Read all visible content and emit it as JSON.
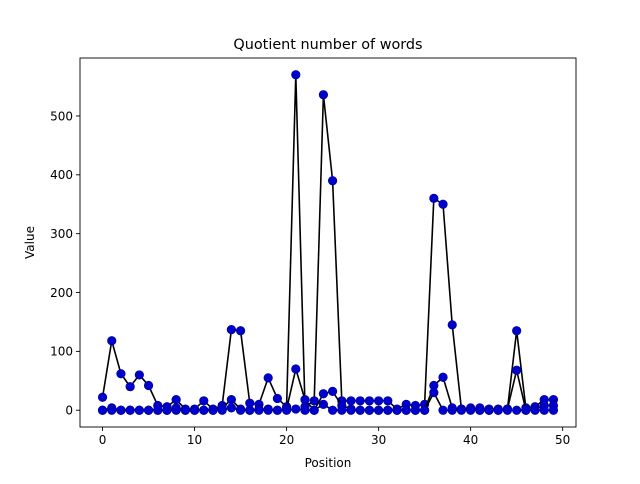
{
  "chart_data": {
    "type": "line",
    "title": "Quotient number of words",
    "xlabel": "Position",
    "ylabel": "Value",
    "xlim": [
      -2.45,
      51.45
    ],
    "ylim": [
      -28.5,
      598.5
    ],
    "xticks": [
      0,
      10,
      20,
      30,
      40,
      50
    ],
    "yticks": [
      0,
      100,
      200,
      300,
      400,
      500
    ],
    "grid": false,
    "legend": "none",
    "line_color": "#000000",
    "marker_color": "#0000cd",
    "series": [
      {
        "values": [
          22,
          118,
          62,
          40,
          60,
          42,
          8,
          6,
          18,
          2,
          2,
          16,
          2,
          8,
          137,
          135,
          12,
          10,
          55,
          20,
          6,
          570,
          6,
          16,
          536,
          390,
          16,
          16,
          16,
          16,
          16,
          16,
          2,
          10,
          8,
          10,
          360,
          350,
          145,
          2,
          2,
          4,
          2,
          2,
          2,
          135,
          4,
          6,
          18,
          18
        ]
      },
      {
        "values": [
          0,
          4,
          0,
          0,
          0,
          0,
          0,
          0,
          4,
          0,
          0,
          0,
          0,
          4,
          18,
          2,
          0,
          2,
          2,
          0,
          2,
          70,
          18,
          0,
          28,
          32,
          8,
          2,
          0,
          0,
          0,
          0,
          0,
          0,
          0,
          0,
          42,
          56,
          4,
          2,
          4,
          0,
          0,
          0,
          2,
          68,
          0,
          2,
          8,
          8
        ]
      },
      {
        "values": [
          0,
          0,
          0,
          0,
          0,
          0,
          0,
          0,
          0,
          0,
          0,
          0,
          0,
          0,
          4,
          0,
          0,
          0,
          0,
          0,
          0,
          2,
          0,
          0,
          10,
          0,
          0,
          0,
          0,
          0,
          0,
          0,
          0,
          0,
          0,
          0,
          30,
          0,
          0,
          0,
          0,
          0,
          0,
          0,
          0,
          0,
          0,
          0,
          0,
          0
        ]
      }
    ]
  }
}
